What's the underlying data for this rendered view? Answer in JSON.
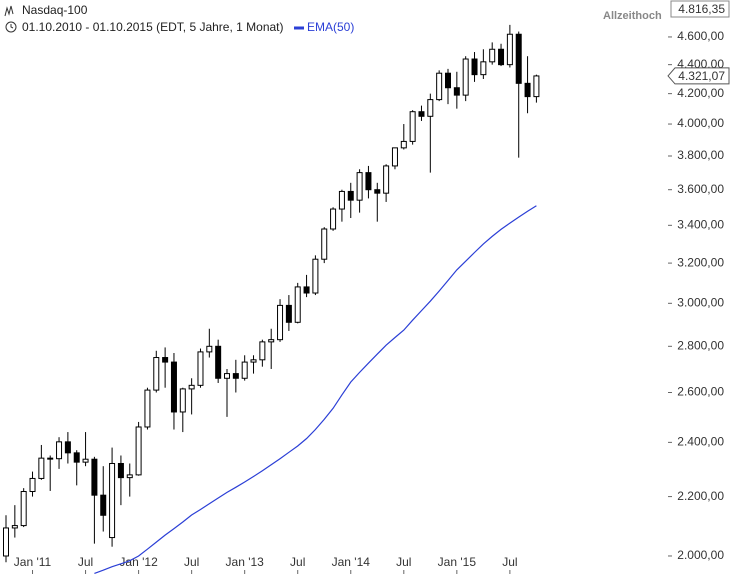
{
  "chart_data": {
    "type": "candlestick",
    "title": "Nasdaq-100",
    "subtitle": "01.10.2010 - 01.10.2015 (EDT, 5 Jahre, 1 Monat)",
    "annotation": {
      "text": "Allzeithoch",
      "value": 4816.35,
      "label": "4.816,35"
    },
    "last_price": {
      "value": 4321.07,
      "label": "4.321,07"
    },
    "log_y": true,
    "ylim": [
      1943,
      4881
    ],
    "yticks": [
      {
        "value": 2000,
        "label": "2.000,00"
      },
      {
        "value": 2200,
        "label": "2.200,00"
      },
      {
        "value": 2400,
        "label": "2.400,00"
      },
      {
        "value": 2600,
        "label": "2.600,00"
      },
      {
        "value": 2800,
        "label": "2.800,00"
      },
      {
        "value": 3000,
        "label": "3.000,00"
      },
      {
        "value": 3200,
        "label": "3.200,00"
      },
      {
        "value": 3400,
        "label": "3.400,00"
      },
      {
        "value": 3600,
        "label": "3.600,00"
      },
      {
        "value": 3800,
        "label": "3.800,00"
      },
      {
        "value": 4000,
        "label": "4.000,00"
      },
      {
        "value": 4200,
        "label": "4.200,00"
      },
      {
        "value": 4400,
        "label": "4.400,00"
      },
      {
        "value": 4600,
        "label": "4.600,00"
      }
    ],
    "categories": [
      null,
      null,
      null,
      "Jan '11",
      null,
      null,
      null,
      null,
      null,
      "Jul",
      null,
      null,
      null,
      null,
      null,
      "Jan '12",
      null,
      null,
      null,
      null,
      null,
      "Jul",
      null,
      null,
      null,
      null,
      null,
      "Jan '13",
      null,
      null,
      null,
      null,
      null,
      "Jul",
      null,
      null,
      null,
      null,
      null,
      "Jan '14",
      null,
      null,
      null,
      null,
      null,
      "Jul",
      null,
      null,
      null,
      null,
      null,
      "Jan '15",
      null,
      null,
      null,
      null,
      null,
      "Jul",
      null,
      null,
      null
    ],
    "ohlc": {
      "open": [
        2000,
        2092,
        2100,
        2218,
        2265,
        2340,
        2338,
        2402,
        2360,
        2325,
        2336,
        2205,
        2060,
        2320,
        2268,
        2278,
        2460,
        2610,
        2750,
        2730,
        2520,
        2615,
        2630,
        2775,
        2800,
        2660,
        2680,
        2660,
        2730,
        2740,
        2820,
        2830,
        2990,
        2910,
        3080,
        3050,
        3220,
        3380,
        3490,
        3590,
        3540,
        3700,
        3600,
        3580,
        3740,
        3850,
        3890,
        4080,
        4050,
        4160,
        4340,
        4240,
        4190,
        4440,
        4330,
        4420,
        4510,
        4400,
        4620,
        4270,
        4180
      ],
      "high": [
        2135,
        2170,
        2230,
        2290,
        2390,
        2350,
        2420,
        2440,
        2370,
        2440,
        2345,
        2310,
        2380,
        2350,
        2320,
        2480,
        2620,
        2780,
        2795,
        2770,
        2620,
        2660,
        2790,
        2880,
        2830,
        2700,
        2740,
        2760,
        2760,
        2830,
        2880,
        3020,
        3040,
        3100,
        3140,
        3240,
        3390,
        3500,
        3600,
        3640,
        3720,
        3740,
        3640,
        3750,
        3850,
        4000,
        4090,
        4120,
        4200,
        4360,
        4370,
        4350,
        4460,
        4490,
        4510,
        4560,
        4550,
        4690,
        4640,
        4460,
        4330
      ],
      "low": [
        1980,
        2060,
        2095,
        2200,
        2260,
        2220,
        2300,
        2320,
        2240,
        2310,
        2040,
        2080,
        2030,
        2170,
        2200,
        2275,
        2450,
        2600,
        2620,
        2450,
        2440,
        2510,
        2620,
        2750,
        2640,
        2500,
        2600,
        2650,
        2680,
        2710,
        2700,
        2820,
        2870,
        2905,
        3030,
        3040,
        3200,
        3370,
        3420,
        3440,
        3470,
        3550,
        3420,
        3530,
        3720,
        3840,
        3870,
        4020,
        3700,
        4150,
        4130,
        4100,
        4150,
        4280,
        4300,
        4400,
        4390,
        4380,
        3790,
        4070,
        4140
      ],
      "close": [
        2092,
        2100,
        2218,
        2265,
        2340,
        2338,
        2402,
        2360,
        2325,
        2336,
        2205,
        2135,
        2320,
        2268,
        2278,
        2460,
        2610,
        2750,
        2730,
        2520,
        2615,
        2630,
        2775,
        2800,
        2660,
        2680,
        2660,
        2730,
        2740,
        2820,
        2830,
        2990,
        2910,
        3080,
        3050,
        3220,
        3380,
        3490,
        3590,
        3540,
        3700,
        3600,
        3580,
        3740,
        3850,
        3890,
        4080,
        4050,
        4160,
        4340,
        4240,
        4190,
        4440,
        4330,
        4420,
        4510,
        4400,
        4620,
        4270,
        4180,
        4321.07
      ]
    },
    "series": [
      {
        "name": "EMA(50)",
        "color": "#2b3fd6",
        "values": [
          null,
          null,
          null,
          null,
          null,
          null,
          null,
          null,
          null,
          null,
          1945,
          1955,
          1966,
          1975,
          1985,
          2000,
          2022,
          2045,
          2068,
          2090,
          2112,
          2136,
          2155,
          2175,
          2195,
          2215,
          2233,
          2252,
          2272,
          2293,
          2315,
          2338,
          2362,
          2386,
          2415,
          2450,
          2490,
          2535,
          2590,
          2644,
          2685,
          2725,
          2765,
          2805,
          2840,
          2874,
          2920,
          2965,
          3010,
          3060,
          3112,
          3165,
          3210,
          3255,
          3300,
          3340,
          3378,
          3412,
          3445,
          3478,
          3508
        ]
      }
    ]
  }
}
